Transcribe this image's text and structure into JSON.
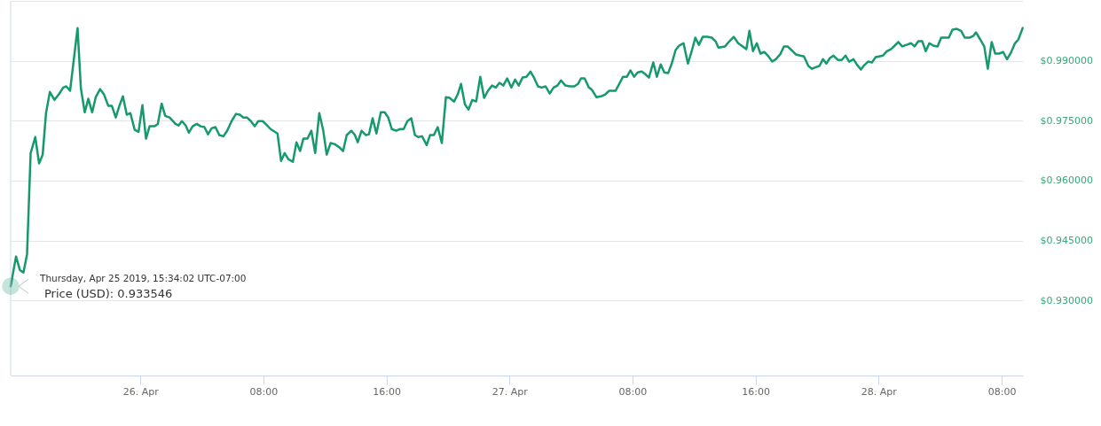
{
  "chart_data": {
    "type": "line",
    "line_style": "solid",
    "grid": "y",
    "x": [
      "2019-04-25T15:34",
      "2019-04-25T15:55",
      "2019-04-25T16:10",
      "2019-04-25T16:24",
      "2019-04-25T16:38",
      "2019-04-25T16:52",
      "2019-04-25T17:10",
      "2019-04-25T17:25",
      "2019-04-25T17:39",
      "2019-04-25T17:52",
      "2019-04-25T18:07",
      "2019-04-25T18:25",
      "2019-04-25T18:42",
      "2019-04-25T18:59",
      "2019-04-25T19:11",
      "2019-04-25T19:26",
      "2019-04-25T19:55",
      "2019-04-25T20:08",
      "2019-04-25T20:23",
      "2019-04-25T20:37",
      "2019-04-25T20:52",
      "2019-04-25T21:06",
      "2019-04-25T21:23",
      "2019-04-25T21:38",
      "2019-04-25T21:55",
      "2019-04-25T22:09",
      "2019-04-25T22:24",
      "2019-04-25T22:38",
      "2019-04-25T22:52",
      "2019-04-25T23:07",
      "2019-04-25T23:21",
      "2019-04-25T23:38",
      "2019-04-25T23:53",
      "2019-04-26T00:08",
      "2019-04-26T00:22",
      "2019-04-26T00:36",
      "2019-04-26T00:56",
      "2019-04-26T01:08",
      "2019-04-26T01:23",
      "2019-04-26T01:37",
      "2019-04-26T01:54",
      "2019-04-26T02:17",
      "2019-04-26T02:29",
      "2019-04-26T02:42",
      "2019-04-26T02:57",
      "2019-04-26T03:09",
      "2019-04-26T03:24",
      "2019-04-26T03:40",
      "2019-04-26T03:55",
      "2019-04-26T04:10",
      "2019-04-26T04:24",
      "2019-04-26T04:38",
      "2019-04-26T04:53",
      "2019-04-26T05:08",
      "2019-04-26T05:24",
      "2019-04-26T05:39",
      "2019-04-26T05:56",
      "2019-04-26T06:13",
      "2019-04-26T06:28",
      "2019-04-26T06:42",
      "2019-04-26T06:56",
      "2019-04-26T07:11",
      "2019-04-26T07:26",
      "2019-04-26T07:40",
      "2019-04-26T07:57",
      "2019-04-26T08:12",
      "2019-04-26T08:28",
      "2019-04-26T08:55",
      "2019-04-26T09:09",
      "2019-04-26T09:23",
      "2019-04-26T09:37",
      "2019-04-26T09:55",
      "2019-04-26T10:09",
      "2019-04-26T10:23",
      "2019-04-26T10:36",
      "2019-04-26T10:52",
      "2019-04-26T11:07",
      "2019-04-26T11:22",
      "2019-04-26T11:38",
      "2019-04-26T11:53",
      "2019-04-26T12:07",
      "2019-04-26T12:22",
      "2019-04-26T12:39",
      "2019-04-26T12:57",
      "2019-04-26T13:11",
      "2019-04-26T13:25",
      "2019-04-26T13:43",
      "2019-04-26T13:57",
      "2019-04-26T14:08",
      "2019-04-26T14:23",
      "2019-04-26T14:40",
      "2019-04-26T14:52",
      "2019-04-26T15:06",
      "2019-04-26T15:21",
      "2019-04-26T15:38",
      "2019-04-26T15:53",
      "2019-04-26T16:07",
      "2019-04-26T16:21",
      "2019-04-26T16:38",
      "2019-04-26T16:53",
      "2019-04-26T17:07",
      "2019-04-26T17:22",
      "2019-04-26T17:37",
      "2019-04-26T17:51",
      "2019-04-26T18:04",
      "2019-04-26T18:19",
      "2019-04-26T18:37",
      "2019-04-26T18:50",
      "2019-04-26T19:05",
      "2019-04-26T19:20",
      "2019-04-26T19:36",
      "2019-04-26T19:52",
      "2019-04-26T20:06",
      "2019-04-26T20:24",
      "2019-04-26T20:38",
      "2019-04-26T20:51",
      "2019-04-26T21:06",
      "2019-04-26T21:20",
      "2019-04-26T21:35",
      "2019-04-26T21:50",
      "2019-04-26T22:06",
      "2019-04-26T22:21",
      "2019-04-26T22:36",
      "2019-04-26T22:52",
      "2019-04-26T23:07",
      "2019-04-26T23:21",
      "2019-04-26T23:36",
      "2019-04-26T23:51",
      "2019-04-27T00:07",
      "2019-04-27T00:22",
      "2019-04-27T00:36",
      "2019-04-27T00:51",
      "2019-04-27T01:06",
      "2019-04-27T01:22",
      "2019-04-27T01:37",
      "2019-04-27T01:51",
      "2019-04-27T02:06",
      "2019-04-27T02:21",
      "2019-04-27T02:37",
      "2019-04-27T02:52",
      "2019-04-27T03:07",
      "2019-04-27T03:21",
      "2019-04-27T03:38",
      "2019-04-27T03:56",
      "2019-04-27T04:13",
      "2019-04-27T04:27",
      "2019-04-27T04:39",
      "2019-04-27T04:53",
      "2019-04-27T05:10",
      "2019-04-27T05:22",
      "2019-04-27T05:39",
      "2019-04-27T05:57",
      "2019-04-27T06:14",
      "2019-04-27T06:29",
      "2019-04-27T06:54",
      "2019-04-27T07:08",
      "2019-04-27T07:23",
      "2019-04-27T07:38",
      "2019-04-27T07:52",
      "2019-04-27T08:06",
      "2019-04-27T08:20",
      "2019-04-27T08:36",
      "2019-04-27T08:49",
      "2019-04-27T09:04",
      "2019-04-27T09:21",
      "2019-04-27T09:35",
      "2019-04-27T09:50",
      "2019-04-27T10:04",
      "2019-04-27T10:19",
      "2019-04-27T10:33",
      "2019-04-27T10:48",
      "2019-04-27T11:02",
      "2019-04-27T11:19",
      "2019-04-27T11:36",
      "2019-04-27T11:50",
      "2019-04-27T12:05",
      "2019-04-27T12:19",
      "2019-04-27T12:34",
      "2019-04-27T12:51",
      "2019-04-27T13:09",
      "2019-04-27T13:24",
      "2019-04-27T13:35",
      "2019-04-27T14:01",
      "2019-04-27T14:18",
      "2019-04-27T14:35",
      "2019-04-27T14:52",
      "2019-04-27T15:10",
      "2019-04-27T15:24",
      "2019-04-27T15:36",
      "2019-04-27T15:50",
      "2019-04-27T16:05",
      "2019-04-27T16:19",
      "2019-04-27T16:34",
      "2019-04-27T16:48",
      "2019-04-27T17:05",
      "2019-04-27T17:19",
      "2019-04-27T17:36",
      "2019-04-27T17:51",
      "2019-04-27T18:05",
      "2019-04-27T18:20",
      "2019-04-27T18:37",
      "2019-04-27T18:54",
      "2019-04-27T19:09",
      "2019-04-27T19:26",
      "2019-04-27T19:40",
      "2019-04-27T19:55",
      "2019-04-27T20:09",
      "2019-04-27T20:23",
      "2019-04-27T20:36",
      "2019-04-27T20:50",
      "2019-04-27T21:04",
      "2019-04-27T21:21",
      "2019-04-27T21:36",
      "2019-04-27T21:51",
      "2019-04-27T22:05",
      "2019-04-27T22:22",
      "2019-04-27T22:37",
      "2019-04-27T22:51",
      "2019-04-27T23:04",
      "2019-04-27T23:19",
      "2019-04-27T23:34",
      "2019-04-27T23:48",
      "2019-04-28T00:02",
      "2019-04-28T00:17",
      "2019-04-28T00:32",
      "2019-04-28T00:48",
      "2019-04-28T01:03",
      "2019-04-28T01:17",
      "2019-04-28T01:32",
      "2019-04-28T01:49",
      "2019-04-28T02:07",
      "2019-04-28T02:20",
      "2019-04-28T02:35",
      "2019-04-28T02:50",
      "2019-04-28T03:04",
      "2019-04-28T03:18",
      "2019-04-28T03:33",
      "2019-04-28T03:50",
      "2019-04-28T04:04",
      "2019-04-28T04:34",
      "2019-04-28T04:48",
      "2019-04-28T05:05",
      "2019-04-28T05:22",
      "2019-04-28T05:36",
      "2019-04-28T05:55",
      "2019-04-28T06:09",
      "2019-04-28T06:20",
      "2019-04-28T06:37",
      "2019-04-28T06:52",
      "2019-04-28T07:06",
      "2019-04-28T07:21",
      "2019-04-28T07:35",
      "2019-04-28T07:50",
      "2019-04-28T08:06",
      "2019-04-28T08:21",
      "2019-04-28T08:36",
      "2019-04-28T08:52",
      "2019-04-28T09:05",
      "2019-04-28T09:22"
    ],
    "series": [
      {
        "color": "#16996b",
        "values": [
          0.933546,
          0.941,
          0.9376,
          0.937,
          0.9416,
          0.9669,
          0.9709,
          0.9643,
          0.9665,
          0.9769,
          0.9822,
          0.9802,
          0.9816,
          0.9833,
          0.9836,
          0.9825,
          0.9982,
          0.9831,
          0.9771,
          0.9805,
          0.9771,
          0.9809,
          0.9829,
          0.9816,
          0.9787,
          0.9787,
          0.9758,
          0.9787,
          0.9811,
          0.9765,
          0.9769,
          0.9727,
          0.9722,
          0.9789,
          0.9705,
          0.9736,
          0.9736,
          0.9742,
          0.9793,
          0.9762,
          0.9758,
          0.9742,
          0.9738,
          0.9749,
          0.9738,
          0.972,
          0.9736,
          0.9742,
          0.9736,
          0.9734,
          0.9716,
          0.9731,
          0.9734,
          0.9714,
          0.9711,
          0.9725,
          0.9749,
          0.9767,
          0.9765,
          0.9758,
          0.9758,
          0.9749,
          0.9736,
          0.9749,
          0.9749,
          0.974,
          0.9729,
          0.9718,
          0.9649,
          0.9669,
          0.9654,
          0.9647,
          0.9696,
          0.9674,
          0.9705,
          0.9705,
          0.9725,
          0.9669,
          0.9769,
          0.9727,
          0.9665,
          0.9694,
          0.9691,
          0.9683,
          0.9674,
          0.9714,
          0.9725,
          0.9714,
          0.9696,
          0.9725,
          0.9714,
          0.9716,
          0.9756,
          0.9718,
          0.9771,
          0.9771,
          0.9758,
          0.9729,
          0.9725,
          0.9729,
          0.9729,
          0.9749,
          0.9756,
          0.9714,
          0.9709,
          0.9711,
          0.9689,
          0.9714,
          0.9714,
          0.9734,
          0.9694,
          0.9809,
          0.9807,
          0.9798,
          0.9816,
          0.9842,
          0.9791,
          0.9778,
          0.9802,
          0.9798,
          0.986,
          0.9807,
          0.9825,
          0.9838,
          0.9833,
          0.9845,
          0.9838,
          0.9856,
          0.9833,
          0.9853,
          0.9838,
          0.9858,
          0.986,
          0.9873,
          0.9856,
          0.9836,
          0.9833,
          0.9836,
          0.9818,
          0.9833,
          0.9838,
          0.9851,
          0.9838,
          0.9836,
          0.9836,
          0.9842,
          0.9856,
          0.9856,
          0.9833,
          0.9827,
          0.9809,
          0.9811,
          0.9816,
          0.9825,
          0.9825,
          0.9842,
          0.986,
          0.986,
          0.9876,
          0.986,
          0.9871,
          0.9873,
          0.9867,
          0.9858,
          0.9896,
          0.986,
          0.9891,
          0.9871,
          0.9869,
          0.9893,
          0.9927,
          0.9938,
          0.9944,
          0.9893,
          0.9922,
          0.9958,
          0.994,
          0.996,
          0.996,
          0.9958,
          0.9949,
          0.9933,
          0.9936,
          0.9949,
          0.996,
          0.9944,
          0.9936,
          0.9929,
          0.9975,
          0.9924,
          0.9944,
          0.9918,
          0.9922,
          0.9913,
          0.9898,
          0.9904,
          0.9916,
          0.9936,
          0.9936,
          0.9927,
          0.9916,
          0.9913,
          0.9911,
          0.9887,
          0.988,
          0.9884,
          0.9887,
          0.9904,
          0.9893,
          0.9907,
          0.9913,
          0.9902,
          0.9902,
          0.9913,
          0.9898,
          0.9904,
          0.9889,
          0.9878,
          0.9889,
          0.9898,
          0.9896,
          0.9909,
          0.9911,
          0.9913,
          0.9924,
          0.9929,
          0.9938,
          0.9947,
          0.9936,
          0.994,
          0.9944,
          0.9936,
          0.9949,
          0.9949,
          0.9924,
          0.9944,
          0.9938,
          0.9936,
          0.9958,
          0.9958,
          0.9978,
          0.998,
          0.9975,
          0.9958,
          0.9958,
          0.9962,
          0.9971,
          0.9953,
          0.9936,
          0.988,
          0.9947,
          0.9918,
          0.9918,
          0.9922,
          0.9904,
          0.992,
          0.9944,
          0.9953,
          0.9982
        ]
      }
    ],
    "xlim": [
      "2019-04-25T15:34",
      "2019-04-28T09:23"
    ],
    "xticks": [
      {
        "value": "2019-04-26T00:00",
        "label": "26. Apr"
      },
      {
        "value": "2019-04-26T08:00",
        "label": "08:00"
      },
      {
        "value": "2019-04-26T16:00",
        "label": "16:00"
      },
      {
        "value": "2019-04-27T00:00",
        "label": "27. Apr"
      },
      {
        "value": "2019-04-27T08:00",
        "label": "08:00"
      },
      {
        "value": "2019-04-27T16:00",
        "label": "16:00"
      },
      {
        "value": "2019-04-28T00:00",
        "label": "28. Apr"
      },
      {
        "value": "2019-04-28T08:00",
        "label": "08:00"
      }
    ],
    "ylim": [
      0.9112,
      1.005
    ],
    "yticks": [
      {
        "value": 0.93,
        "label": "$0.930000"
      },
      {
        "value": 0.945,
        "label": "$0.945000"
      },
      {
        "value": 0.96,
        "label": "$0.960000"
      },
      {
        "value": 0.975,
        "label": "$0.975000"
      },
      {
        "value": 0.99,
        "label": "$0.990000"
      },
      {
        "value": 1.005,
        "label": null
      }
    ],
    "annotations": [
      {
        "text": "Thursday, Apr 25 2019, 15:34:02 UTC-07:00",
        "x": "2019-04-25T15:34",
        "y": 0.933546
      },
      {
        "text": "Price (USD): 0.933546",
        "x": "2019-04-25T15:34",
        "y": 0.933546
      }
    ]
  }
}
